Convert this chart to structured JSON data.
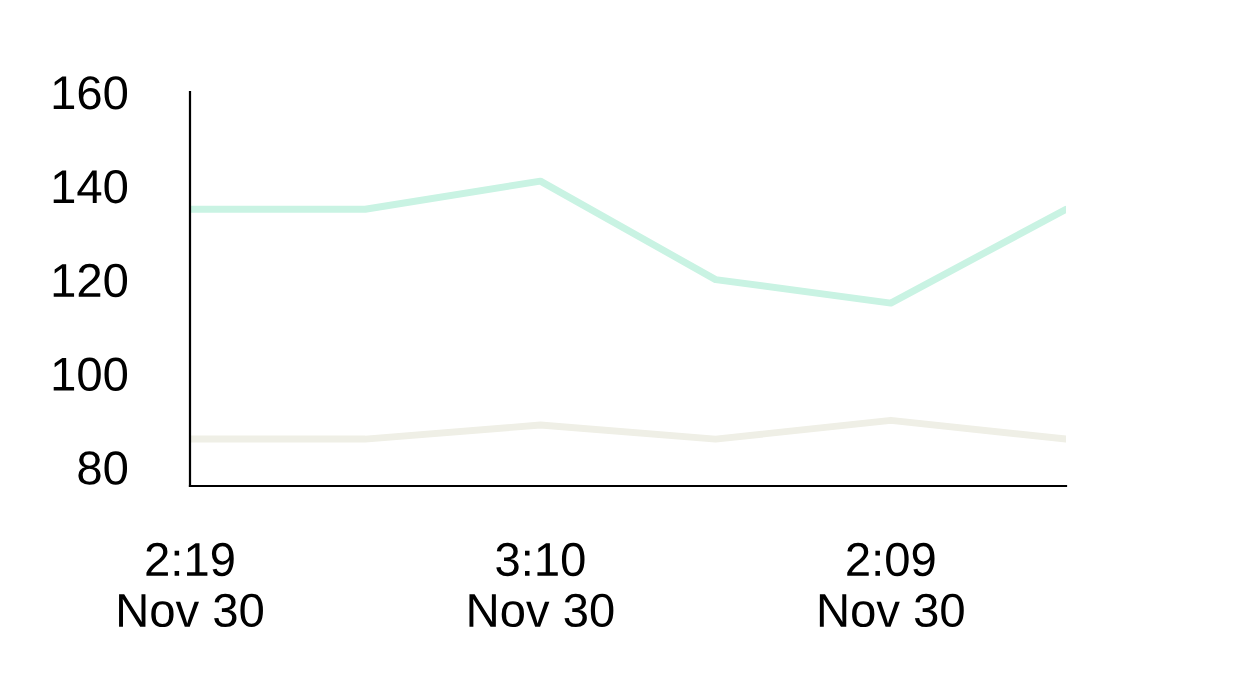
{
  "chart_data": {
    "type": "line",
    "categories": [
      "2:19\nNov 30",
      null,
      "3:10\nNov 30",
      null,
      "2:09\nNov 30",
      null
    ],
    "series": [
      {
        "color": "#c9f3e3",
        "values": [
          135,
          135,
          141,
          120,
          115,
          135
        ]
      },
      {
        "color": "#efefe6",
        "values": [
          86,
          86,
          89,
          86,
          90,
          86
        ]
      }
    ],
    "ylim": [
      76,
      160
    ],
    "yticks": [
      80,
      100,
      120,
      140,
      160
    ],
    "grid": false,
    "legend": false,
    "marker": "none",
    "line_style": "solid"
  }
}
